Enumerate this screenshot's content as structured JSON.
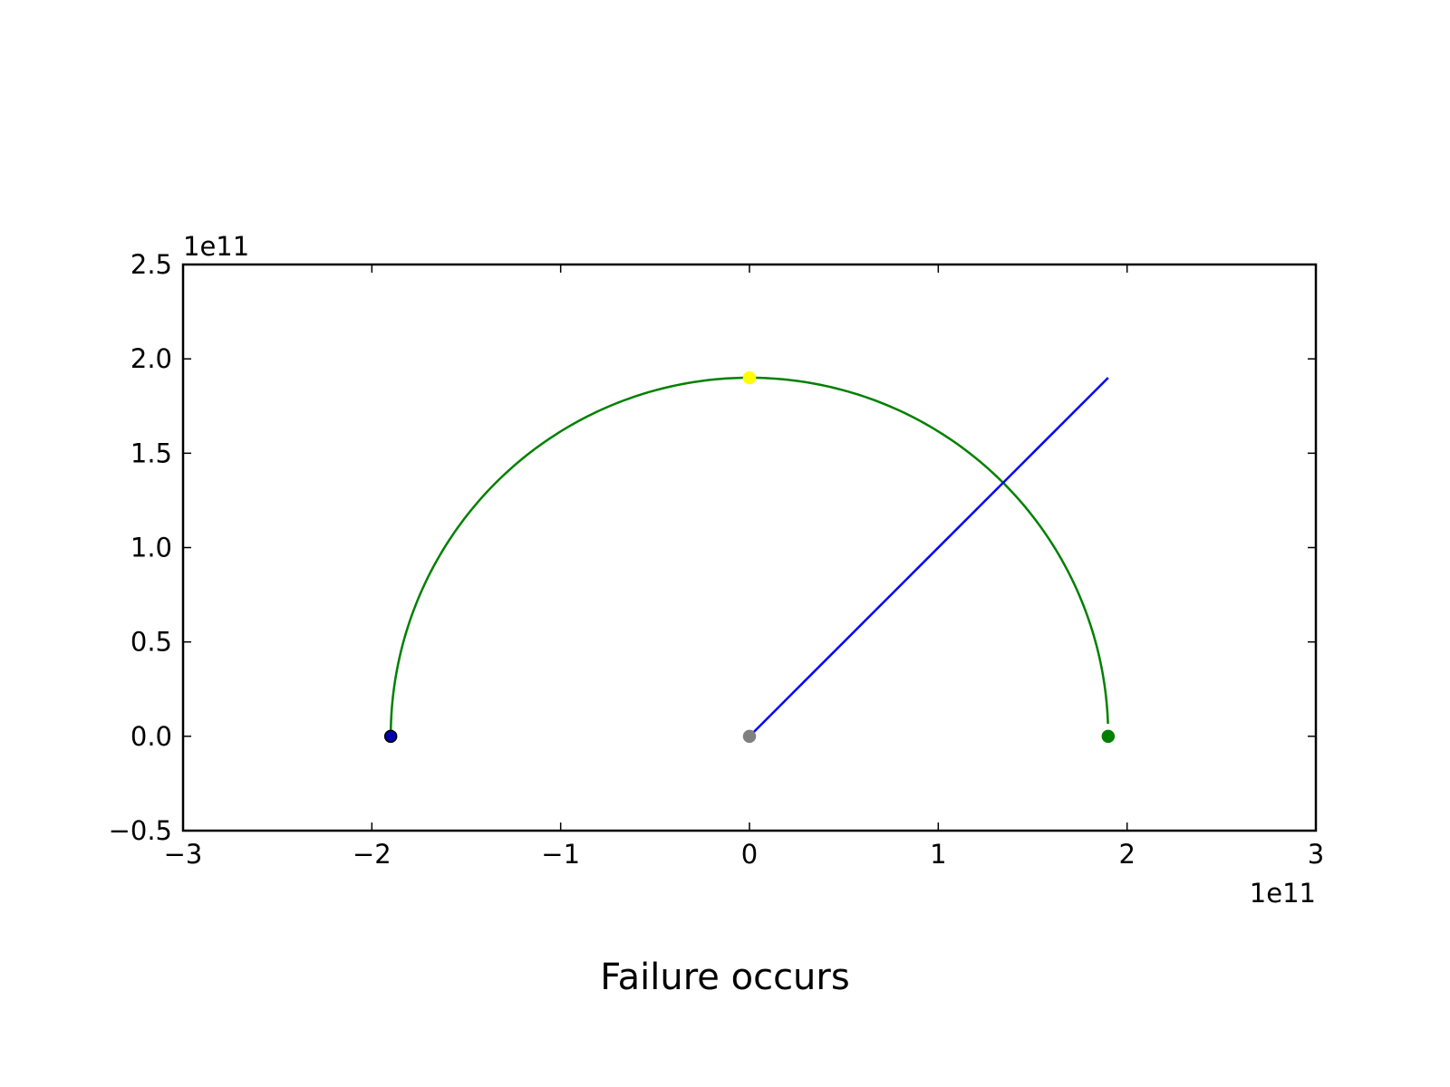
{
  "caption": "Failure occurs",
  "chart_data": {
    "type": "line",
    "title": "",
    "xlabel": "",
    "ylabel": "",
    "xlim": [
      -300000000000.0,
      300000000000.0
    ],
    "ylim": [
      -50000000000.0,
      250000000000.0
    ],
    "x_offset_text": "1e11",
    "y_offset_text": "1e11",
    "x_ticks": [
      -3,
      -2,
      -1,
      0,
      1,
      2,
      3
    ],
    "x_tick_labels": [
      "−3",
      "−2",
      "−1",
      "0",
      "1",
      "2",
      "3"
    ],
    "y_ticks": [
      -0.5,
      0.0,
      0.5,
      1.0,
      1.5,
      2.0,
      2.5
    ],
    "y_tick_labels": [
      "−0.5",
      "0.0",
      "0.5",
      "1.0",
      "1.5",
      "2.0",
      "2.5"
    ],
    "grid": false,
    "legend": "none",
    "series": [
      {
        "type": "arc",
        "color": "#008000",
        "center": [
          0,
          0
        ],
        "radius": 190000000000.0,
        "angle_start_deg": 2,
        "angle_end_deg": 180
      },
      {
        "type": "line",
        "color": "#0000ff",
        "x": [
          0,
          190000000000.0
        ],
        "y": [
          0,
          190000000000.0
        ]
      }
    ],
    "points": [
      {
        "x": -190000000000.0,
        "y": 0,
        "color": "#0000aa",
        "edge": "#000000"
      },
      {
        "x": 0,
        "y": 0,
        "color": "#808080",
        "edge": "#808080"
      },
      {
        "x": 190000000000.0,
        "y": 0,
        "color": "#008000",
        "edge": "#008000"
      },
      {
        "x": 0,
        "y": 190000000000.0,
        "color": "#ffff00",
        "edge": "#ffff00"
      }
    ]
  }
}
